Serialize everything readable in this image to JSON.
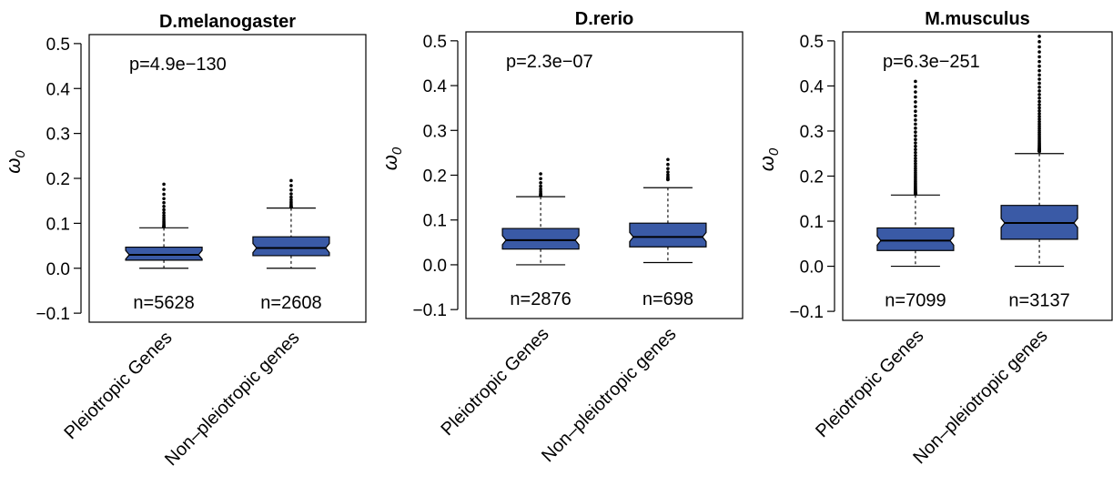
{
  "chart_data": [
    {
      "type": "box",
      "title": "D.melanogaster",
      "ylabel": "ω",
      "ylabel_sub": "0",
      "ylim": [
        -0.12,
        0.52
      ],
      "yticks": [
        -0.1,
        0.0,
        0.1,
        0.2,
        0.3,
        0.4,
        0.5
      ],
      "ytick_labels": [
        "−0.1",
        "0.0",
        "0.1",
        "0.2",
        "0.3",
        "0.4",
        "0.5"
      ],
      "categories": [
        "Pleiotropic Genes",
        "Non–pleiotropic genes"
      ],
      "p_value": "p=4.9e−130",
      "counts": [
        "n=5628",
        "n=2608"
      ],
      "box_color": "#3a5aa6",
      "boxes": [
        {
          "min": 0.0,
          "q1": 0.018,
          "median": 0.03,
          "q3": 0.047,
          "whisker_high": 0.09,
          "outliers_from": 0.092,
          "outliers_to": 0.187
        },
        {
          "min": 0.0,
          "q1": 0.028,
          "median": 0.045,
          "q3": 0.07,
          "whisker_high": 0.134,
          "outliers_from": 0.136,
          "outliers_to": 0.195
        }
      ]
    },
    {
      "type": "box",
      "title": "D.rerio",
      "ylabel": "ω",
      "ylabel_sub": "0",
      "ylim": [
        -0.12,
        0.52
      ],
      "yticks": [
        -0.1,
        0.0,
        0.1,
        0.2,
        0.3,
        0.4,
        0.5
      ],
      "ytick_labels": [
        "−0.1",
        "0.0",
        "0.1",
        "0.2",
        "0.3",
        "0.4",
        "0.5"
      ],
      "categories": [
        "Pleiotropic Genes",
        "Non–pleiotropic genes"
      ],
      "p_value": "p=2.3e−07",
      "counts": [
        "n=2876",
        "n=698"
      ],
      "box_color": "#3a5aa6",
      "boxes": [
        {
          "min": 0.0,
          "q1": 0.035,
          "median": 0.055,
          "q3": 0.081,
          "whisker_high": 0.152,
          "outliers_from": 0.155,
          "outliers_to": 0.203
        },
        {
          "min": 0.005,
          "q1": 0.04,
          "median": 0.062,
          "q3": 0.093,
          "whisker_high": 0.172,
          "outliers_from": 0.19,
          "outliers_to": 0.235
        }
      ]
    },
    {
      "type": "box",
      "title": "M.musculus",
      "ylabel": "ω",
      "ylabel_sub": "0",
      "ylim": [
        -0.12,
        0.52
      ],
      "yticks": [
        -0.1,
        0.0,
        0.1,
        0.2,
        0.3,
        0.4,
        0.5
      ],
      "ytick_labels": [
        "−0.1",
        "0.0",
        "0.1",
        "0.2",
        "0.3",
        "0.4",
        "0.5"
      ],
      "categories": [
        "Pleiotropic Genes",
        "Non–pleiotropic genes"
      ],
      "p_value": "p=6.3e−251",
      "counts": [
        "n=7099",
        "n=3137"
      ],
      "box_color": "#3a5aa6",
      "boxes": [
        {
          "min": 0.0,
          "q1": 0.035,
          "median": 0.057,
          "q3": 0.085,
          "whisker_high": 0.158,
          "outliers_from": 0.16,
          "outliers_to": 0.41
        },
        {
          "min": 0.0,
          "q1": 0.06,
          "median": 0.096,
          "q3": 0.135,
          "whisker_high": 0.25,
          "outliers_from": 0.255,
          "outliers_to": 0.51
        }
      ]
    }
  ]
}
